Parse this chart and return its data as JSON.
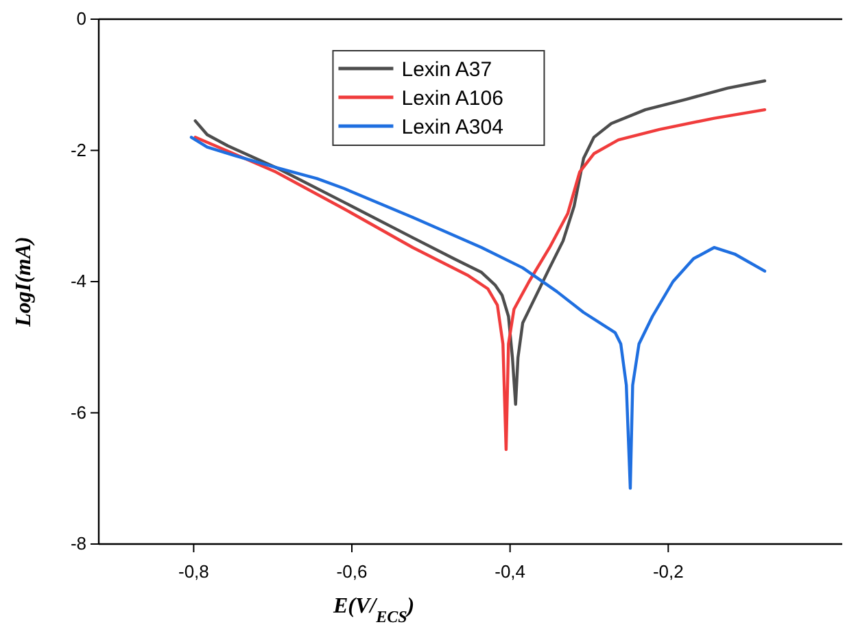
{
  "chart_data": {
    "type": "line",
    "xlabel": "E(V/$_{ECS}$)",
    "ylabel": "LogI(mA)",
    "xlim": [
      -0.92,
      0.02
    ],
    "ylim": [
      -8,
      0
    ],
    "xticks": [
      {
        "value": -0.8,
        "label": "-0,8"
      },
      {
        "value": -0.6,
        "label": "-0,6"
      },
      {
        "value": -0.4,
        "label": "-0,4"
      },
      {
        "value": -0.2,
        "label": "-0,2"
      }
    ],
    "yticks": [
      0,
      -2,
      -4,
      -6,
      -8
    ],
    "grid": false,
    "legend": "top",
    "marker": "none",
    "line_style": "solid",
    "series": [
      {
        "name": "Lexin A37",
        "color": "#4d4d4d",
        "x": [
          -0.798,
          -0.783,
          -0.757,
          -0.696,
          -0.61,
          -0.523,
          -0.471,
          -0.436,
          -0.419,
          -0.41,
          -0.402,
          -0.397,
          -0.393,
          -0.39,
          -0.384,
          -0.367,
          -0.35,
          -0.333,
          -0.319,
          -0.307,
          -0.294,
          -0.272,
          -0.229,
          -0.177,
          -0.125,
          -0.078
        ],
        "values": [
          -1.55,
          -1.76,
          -1.93,
          -2.26,
          -2.79,
          -3.33,
          -3.65,
          -3.86,
          -4.05,
          -4.21,
          -4.53,
          -5.16,
          -5.87,
          -5.16,
          -4.63,
          -4.21,
          -3.79,
          -3.38,
          -2.85,
          -2.12,
          -1.8,
          -1.59,
          -1.38,
          -1.22,
          -1.05,
          -0.94
        ]
      },
      {
        "name": "Lexin A106",
        "color": "#f03c3c",
        "x": [
          -0.798,
          -0.757,
          -0.696,
          -0.61,
          -0.523,
          -0.454,
          -0.428,
          -0.416,
          -0.409,
          -0.405,
          -0.402,
          -0.395,
          -0.376,
          -0.35,
          -0.327,
          -0.312,
          -0.294,
          -0.263,
          -0.211,
          -0.142,
          -0.078
        ],
        "values": [
          -1.8,
          -2.01,
          -2.33,
          -2.89,
          -3.48,
          -3.9,
          -4.11,
          -4.36,
          -4.95,
          -6.56,
          -4.95,
          -4.42,
          -4.0,
          -3.48,
          -2.96,
          -2.33,
          -2.05,
          -1.84,
          -1.68,
          -1.51,
          -1.38
        ]
      },
      {
        "name": "Lexin A304",
        "color": "#1f6fe0",
        "x": [
          -0.803,
          -0.783,
          -0.748,
          -0.696,
          -0.644,
          -0.61,
          -0.523,
          -0.436,
          -0.384,
          -0.341,
          -0.307,
          -0.272,
          -0.267,
          -0.26,
          -0.253,
          -0.248,
          -0.245,
          -0.237,
          -0.22,
          -0.194,
          -0.168,
          -0.142,
          -0.116,
          -0.078
        ],
        "values": [
          -1.8,
          -1.95,
          -2.08,
          -2.26,
          -2.43,
          -2.58,
          -3.02,
          -3.48,
          -3.79,
          -4.15,
          -4.47,
          -4.74,
          -4.78,
          -4.95,
          -5.58,
          -7.15,
          -5.58,
          -4.95,
          -4.53,
          -4.0,
          -3.65,
          -3.48,
          -3.58,
          -3.84
        ]
      }
    ]
  }
}
